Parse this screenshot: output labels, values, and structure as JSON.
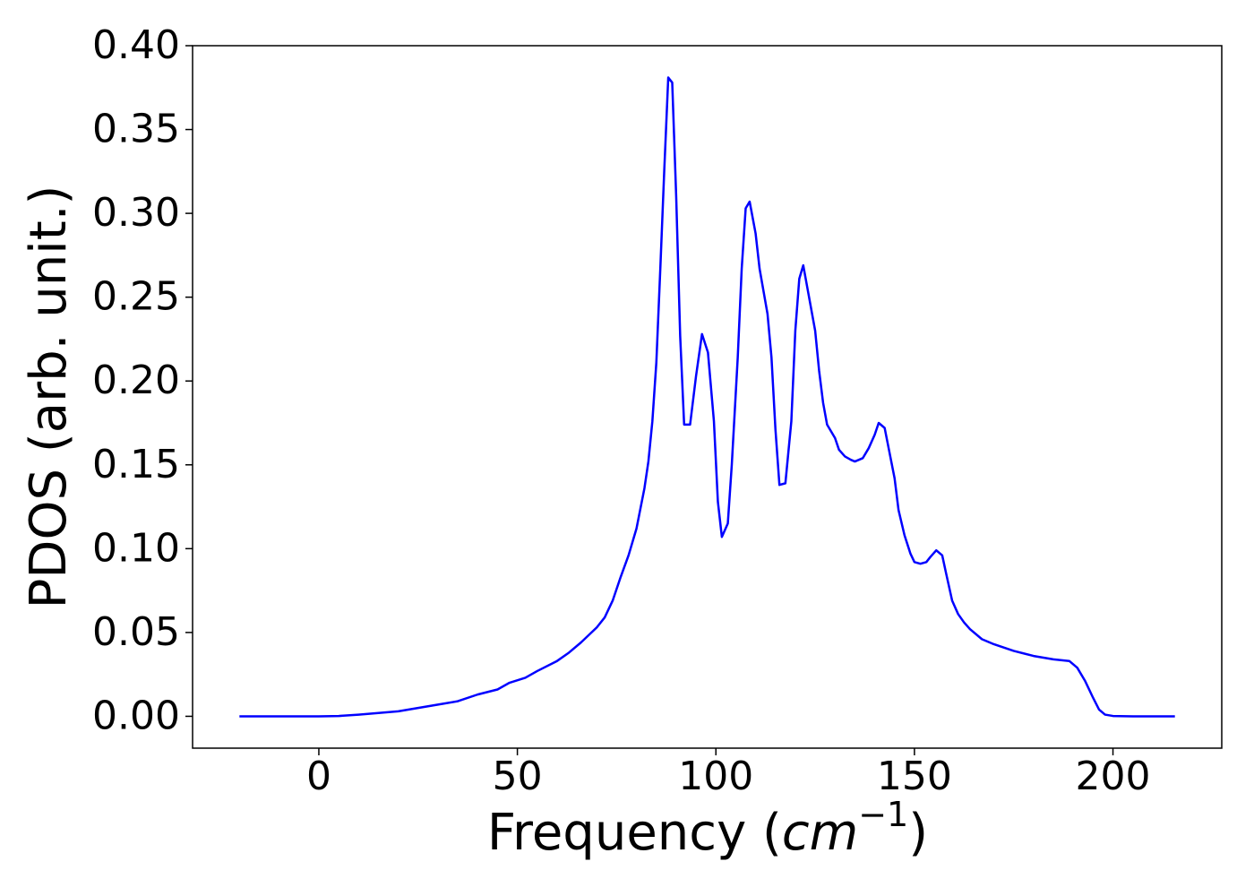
{
  "chart_data": {
    "type": "line",
    "xlabel": [
      "Frequency (",
      "cm",
      "−1",
      ")"
    ],
    "ylabel": "PDOS (arb. unit.)",
    "xlim": [
      -31.8,
      227.4
    ],
    "ylim": [
      -0.019,
      0.4
    ],
    "xticks": [
      0,
      50,
      100,
      150,
      200
    ],
    "yticks": [
      {
        "value": 0,
        "label": "0.00"
      },
      {
        "value": 0.05,
        "label": "0.05"
      },
      {
        "value": 0.1,
        "label": "0.10"
      },
      {
        "value": 0.15,
        "label": "0.15"
      },
      {
        "value": 0.2,
        "label": "0.20"
      },
      {
        "value": 0.25,
        "label": "0.25"
      },
      {
        "value": 0.3,
        "label": "0.30"
      },
      {
        "value": 0.35,
        "label": "0.35"
      },
      {
        "value": 0.4,
        "label": "0.40"
      }
    ],
    "grid": false,
    "x": [
      -20,
      0,
      5,
      10,
      15,
      20,
      25,
      30,
      35,
      40,
      45,
      48,
      52,
      55,
      60,
      63,
      66,
      70,
      72,
      74,
      76,
      78,
      80,
      82,
      83,
      84,
      85,
      86,
      87,
      88,
      89,
      90,
      91,
      92,
      93.5,
      95,
      96.5,
      98,
      99.5,
      100.5,
      101.5,
      103,
      104,
      105.5,
      106.5,
      107.5,
      108.5,
      110,
      111,
      113,
      114,
      115,
      116,
      117.5,
      119,
      120,
      121,
      122,
      123,
      125,
      126,
      127,
      128,
      130,
      131,
      132.5,
      134,
      135,
      137,
      138.5,
      140,
      141,
      142.5,
      143.5,
      145,
      146,
      147.5,
      149,
      150,
      151.5,
      153,
      154,
      155.5,
      157,
      158,
      159.5,
      161,
      162.5,
      164,
      167,
      170,
      175,
      180,
      185,
      189,
      191,
      193,
      195,
      196.5,
      198,
      200,
      205,
      215.6
    ],
    "series": [
      {
        "color": "#0000ff",
        "values": [
          0,
          0,
          0.0002,
          0.001,
          0.002,
          0.003,
          0.005,
          0.007,
          0.009,
          0.013,
          0.016,
          0.02,
          0.023,
          0.027,
          0.033,
          0.038,
          0.044,
          0.053,
          0.059,
          0.069,
          0.083,
          0.096,
          0.112,
          0.136,
          0.152,
          0.176,
          0.211,
          0.267,
          0.326,
          0.381,
          0.378,
          0.31,
          0.227,
          0.174,
          0.174,
          0.203,
          0.228,
          0.217,
          0.176,
          0.128,
          0.107,
          0.115,
          0.15,
          0.214,
          0.267,
          0.303,
          0.307,
          0.288,
          0.267,
          0.24,
          0.214,
          0.171,
          0.138,
          0.139,
          0.176,
          0.23,
          0.261,
          0.269,
          0.256,
          0.23,
          0.206,
          0.187,
          0.174,
          0.166,
          0.159,
          0.155,
          0.153,
          0.152,
          0.154,
          0.16,
          0.168,
          0.175,
          0.172,
          0.16,
          0.142,
          0.123,
          0.108,
          0.097,
          0.092,
          0.091,
          0.092,
          0.095,
          0.099,
          0.096,
          0.085,
          0.069,
          0.061,
          0.056,
          0.052,
          0.046,
          0.043,
          0.039,
          0.036,
          0.034,
          0.033,
          0.029,
          0.021,
          0.011,
          0.004,
          0.001,
          0.0002,
          0,
          0
        ]
      }
    ]
  }
}
